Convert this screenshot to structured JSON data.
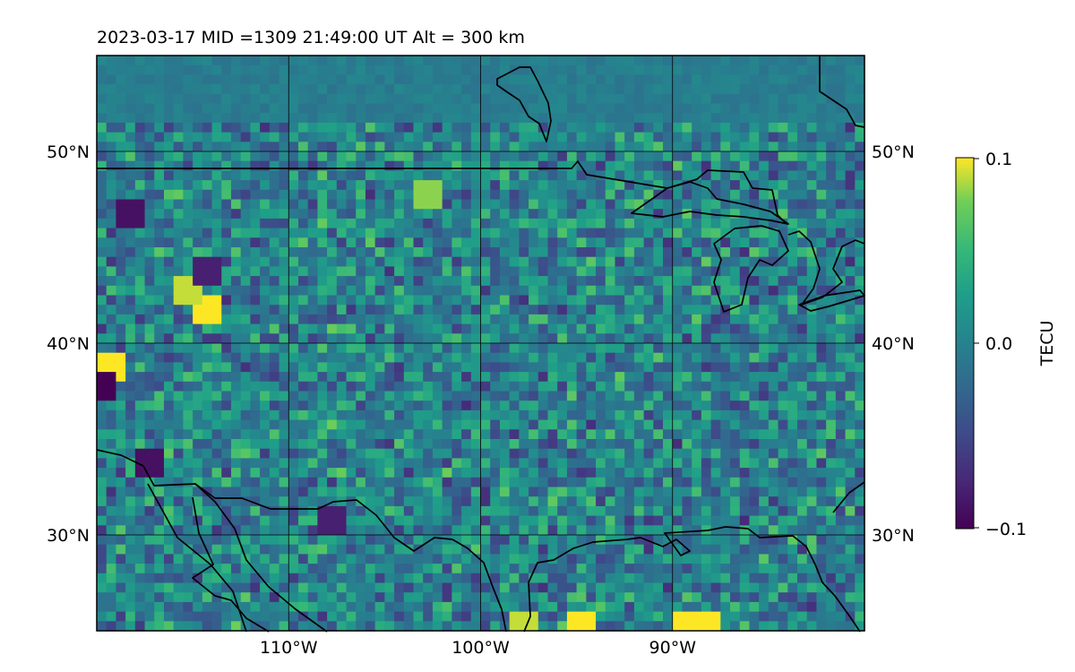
{
  "chart_data": {
    "type": "heatmap",
    "title": "2023-03-17  MID =1309    21:49:00  UT  Alt = 300 km",
    "map": {
      "lon_range": [
        -120,
        -80
      ],
      "lat_range": [
        25,
        55
      ],
      "x_tick_values": [
        -110,
        -100,
        -90
      ],
      "x_tick_labels": [
        "110°W",
        "100°W",
        "90°W"
      ],
      "y_tick_values": [
        50,
        40,
        30
      ],
      "y_tick_labels": [
        "50°N",
        "40°N",
        "30°N"
      ],
      "grid": true,
      "coastlines": true
    },
    "colorbar": {
      "label": "TECU",
      "colormap": "viridis",
      "vmin": -0.1,
      "vmax": 0.1,
      "tick_labels": [
        "0.1",
        "0.0",
        "−0.1"
      ]
    },
    "field": {
      "lon_step": 0.5,
      "lat_step": 0.5,
      "description_note": "",
      "hotspots": [
        {
          "lon": -88.5,
          "lat": 25.5,
          "value": 0.1
        },
        {
          "lon": -89.5,
          "lat": 25.5,
          "value": 0.1
        },
        {
          "lon": -114.5,
          "lat": 42.0,
          "value": 0.1
        },
        {
          "lon": -115.5,
          "lat": 43.0,
          "value": 0.09
        },
        {
          "lon": -119.5,
          "lat": 39.0,
          "value": 0.1
        },
        {
          "lon": -103.0,
          "lat": 48.0,
          "value": 0.08
        },
        {
          "lon": -95.0,
          "lat": 25.5,
          "value": 0.1
        },
        {
          "lon": -98.0,
          "lat": 25.5,
          "value": 0.09
        }
      ],
      "coldspots": [
        {
          "lon": -120.0,
          "lat": 38.0,
          "value": -0.1
        },
        {
          "lon": -118.5,
          "lat": 47.0,
          "value": -0.09
        },
        {
          "lon": -114.5,
          "lat": 44.0,
          "value": -0.08
        },
        {
          "lon": -117.5,
          "lat": 34.0,
          "value": -0.09
        },
        {
          "lon": -108.0,
          "lat": 31.0,
          "value": -0.08
        }
      ]
    }
  }
}
